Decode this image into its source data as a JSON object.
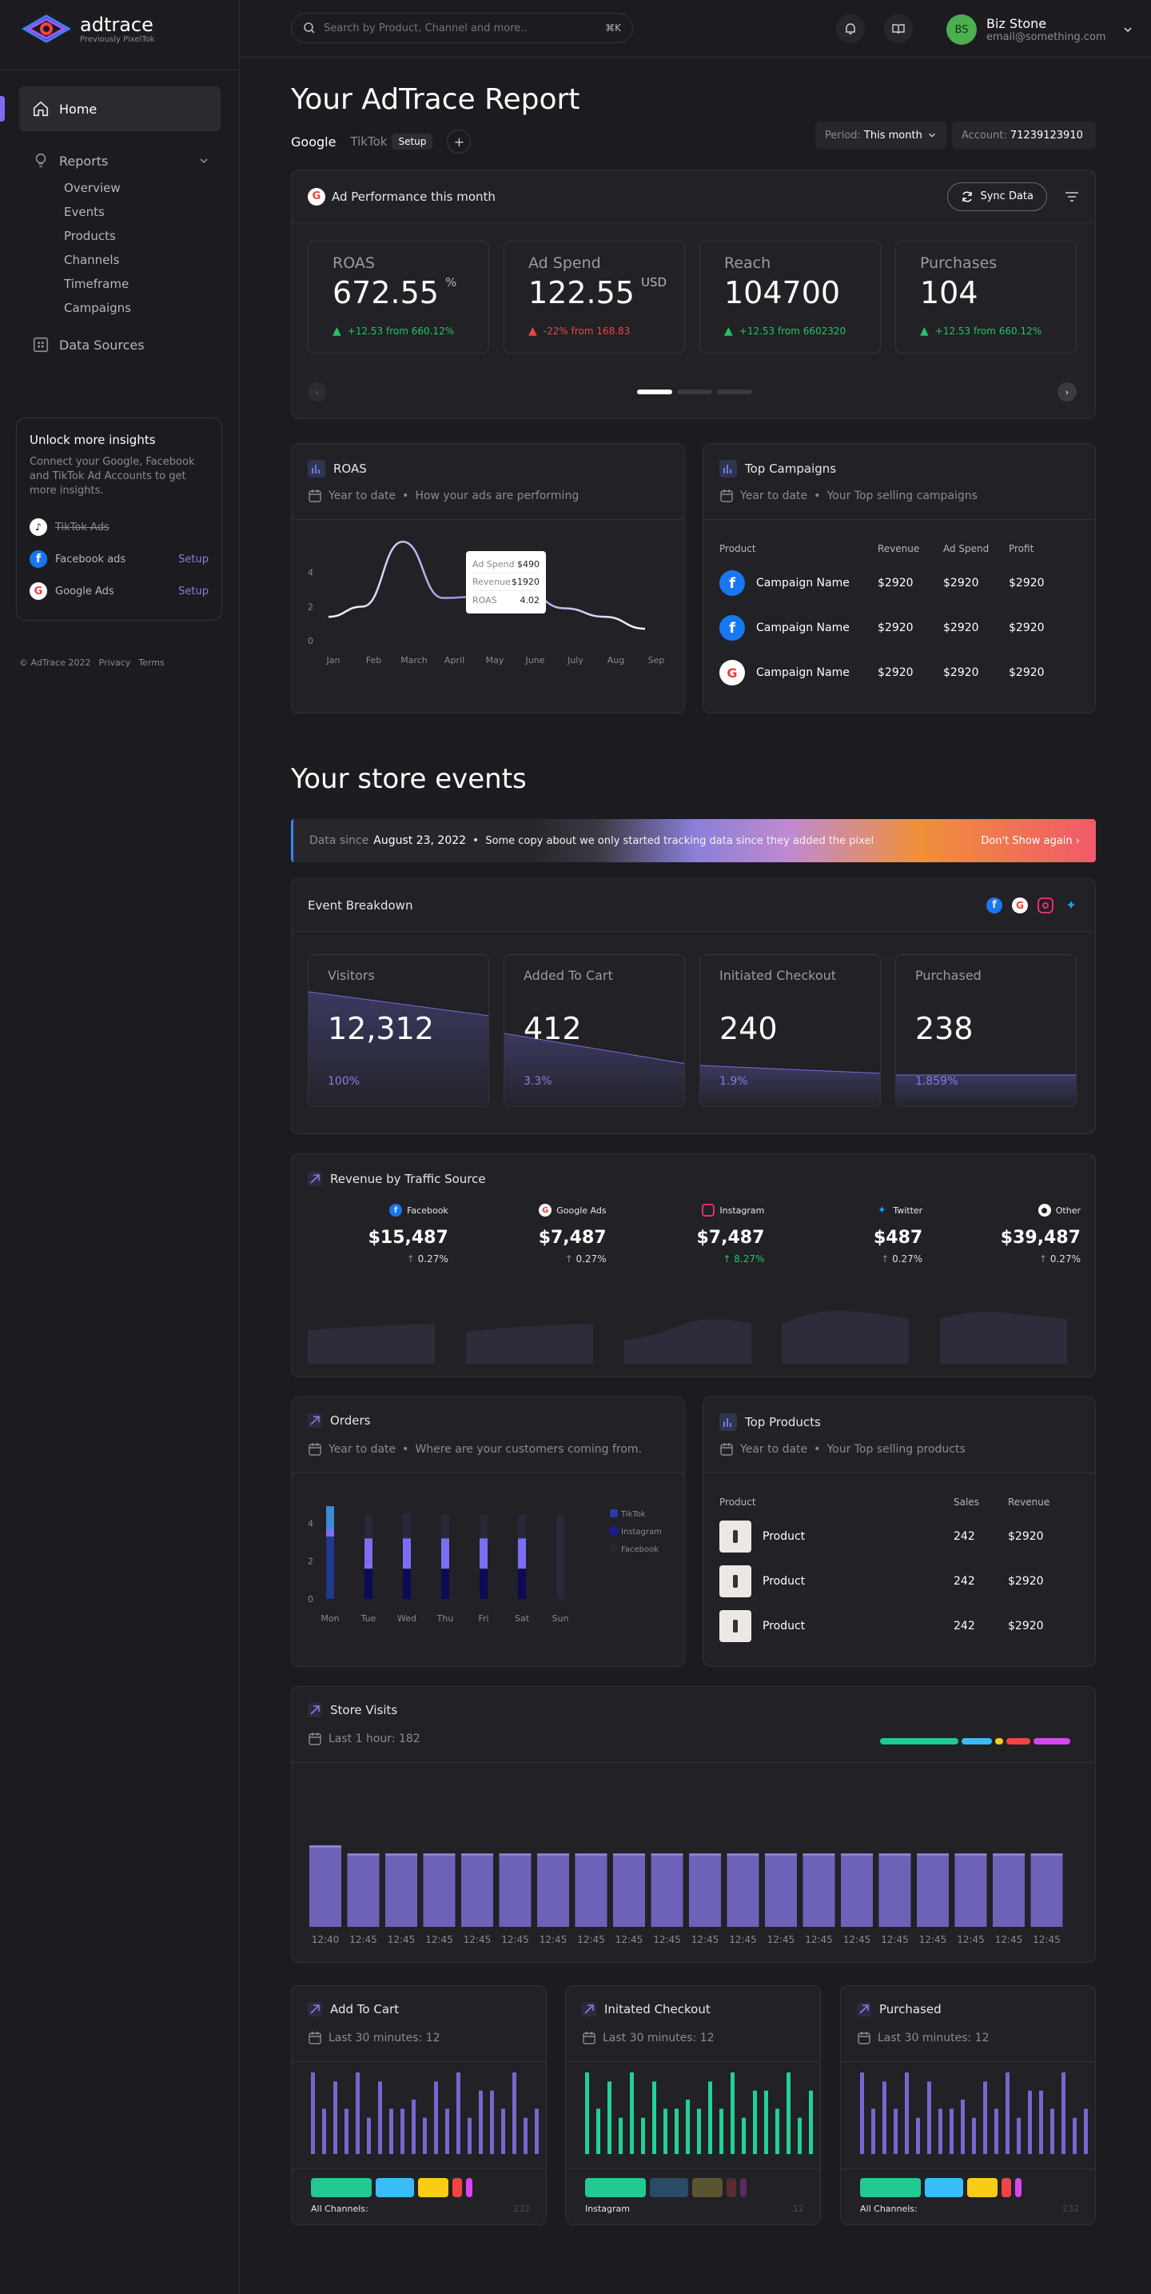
{
  "brand": {
    "name": "adtrace",
    "tagline": "Previously PixelTok"
  },
  "sidebar": {
    "home": "Home",
    "reports": "Reports",
    "report_items": [
      "Overview",
      "Events",
      "Products",
      "Channels",
      "Timeframe",
      "Campaigns"
    ],
    "data_sources": "Data Sources",
    "insights": {
      "title": "Unlock more insights",
      "desc": "Connect your Google, Facebook and TikTok Ad Accounts to get more insights.",
      "items": [
        {
          "label": "TikTok Ads",
          "action": ""
        },
        {
          "label": "Facebook ads",
          "action": "Setup"
        },
        {
          "label": "Google Ads",
          "action": "Setup"
        }
      ]
    },
    "footer": {
      "copy": "© AdTrace 2022",
      "privacy": "Privacy",
      "terms": "Terms"
    }
  },
  "topbar": {
    "search_placeholder": "Search by Product, Channel and more..",
    "shortcut": "⌘K",
    "user": {
      "initials": "BS",
      "name": "Biz Stone",
      "email": "email@something.com"
    }
  },
  "report": {
    "title": "Your AdTrace Report",
    "tabs": [
      {
        "label": "Google"
      },
      {
        "label": "TikTok",
        "badge": "Setup"
      }
    ],
    "add_tab": "+",
    "period_label": "Period:",
    "period_value": "This month",
    "account_label": "Account:",
    "account_value": "71239123910",
    "ad_card_title": "Ad Performance this month",
    "sync_label": "Sync Data",
    "metrics": [
      {
        "label": "ROAS",
        "value": "672.55",
        "unit": "%",
        "change": "+12.53 from 660.12%",
        "dir": "up"
      },
      {
        "label": "Ad Spend",
        "value": "122.55",
        "unit": "USD",
        "change": "-22% from 168.83",
        "dir": "down"
      },
      {
        "label": "Reach",
        "value": "104700",
        "unit": "",
        "change": "+12.53 from 6602320",
        "dir": "up"
      },
      {
        "label": "Purchases",
        "value": "104",
        "unit": "",
        "change": "+12.53 from 660.12%",
        "dir": "up"
      }
    ]
  },
  "roas_card": {
    "title": "ROAS",
    "subtitle_a": "Year to date",
    "subtitle_b": "How your ads are performing",
    "tooltip": {
      "spend_label": "Ad Spend",
      "spend": "$490",
      "revenue_label": "Revenue",
      "revenue": "$1920",
      "roas_label": "ROAS",
      "roas": "4.02"
    }
  },
  "campaigns": {
    "title": "Top Campaigns",
    "subtitle_a": "Year to date",
    "subtitle_b": "Your Top selling campaigns",
    "headers": [
      "Product",
      "Revenue",
      "Ad Spend",
      "Profit"
    ],
    "rows": [
      {
        "icon": "facebook",
        "name": "Campaign Name",
        "revenue": "$2920",
        "spend": "$2920",
        "profit": "$2920"
      },
      {
        "icon": "facebook",
        "name": "Campaign Name",
        "revenue": "$2920",
        "spend": "$2920",
        "profit": "$2920"
      },
      {
        "icon": "google",
        "name": "Campaign Name",
        "revenue": "$2920",
        "spend": "$2920",
        "profit": "$2920"
      }
    ]
  },
  "store": {
    "title": "Your store events",
    "banner_prefix": "Data since",
    "banner_date": "August 23, 2022",
    "banner_text": "Some copy about we only started tracking data since they added the pixel",
    "banner_action": "Don't Show again",
    "breakdown_title": "Event Breakdown",
    "events": [
      {
        "label": "Visitors",
        "value": "12,312",
        "pct": "100%"
      },
      {
        "label": "Added To Cart",
        "value": "412",
        "pct": "3.3%"
      },
      {
        "label": "Initiated Checkout",
        "value": "240",
        "pct": "1.9%"
      },
      {
        "label": "Purchased",
        "value": "238",
        "pct": "1.859%"
      }
    ],
    "traffic_title": "Revenue by Traffic Source",
    "traffic": [
      {
        "source": "Facebook",
        "value": "$15,487",
        "change": "0.27%",
        "dir": "neutral"
      },
      {
        "source": "Google Ads",
        "value": "$7,487",
        "change": "0.27%",
        "dir": "neutral"
      },
      {
        "source": "Instagram",
        "value": "$7,487",
        "change": "8.27%",
        "dir": "up"
      },
      {
        "source": "Twitter",
        "value": "$487",
        "change": "0.27%",
        "dir": "neutral"
      },
      {
        "source": "Other",
        "value": "$39,487",
        "change": "0.27%",
        "dir": "neutral"
      }
    ]
  },
  "orders": {
    "title": "Orders",
    "subtitle_a": "Year to date",
    "subtitle_b": "Where are your customers coming from."
  },
  "top_products": {
    "title": "Top Products",
    "subtitle_a": "Year to date",
    "subtitle_b": "Your Top selling products",
    "headers": [
      "Product",
      "Sales",
      "Revenue"
    ],
    "rows": [
      {
        "name": "Product",
        "sales": "242",
        "revenue": "$2920"
      },
      {
        "name": "Product",
        "sales": "242",
        "revenue": "$2920"
      },
      {
        "name": "Product",
        "sales": "242",
        "revenue": "$2920"
      }
    ]
  },
  "store_visits": {
    "title": "Store Visits",
    "subtitle": "Last 1 hour: 182"
  },
  "mini_cards": [
    {
      "title": "Add To Cart",
      "subtitle": "Last 30 minutes: 12",
      "footer_label": "All Channels:",
      "footer_value": "232",
      "color": "#7468cf"
    },
    {
      "title": "Initated Checkout",
      "subtitle": "Last 30 minutes: 12",
      "footer_label": "Instagram",
      "footer_value": "12",
      "color": "#21d196"
    },
    {
      "title": "Purchased",
      "subtitle": "Last 30 minutes: 12",
      "footer_label": "All Channels:",
      "footer_value": "232",
      "color": "#7468cf"
    }
  ],
  "chart_data": [
    {
      "type": "line",
      "title": "ROAS",
      "categories": [
        "Jan",
        "Feb",
        "March",
        "April",
        "May",
        "June",
        "July",
        "Aug",
        "Sep"
      ],
      "series": [
        {
          "values": [
            1.4,
            2.0,
            5.8,
            2.5,
            2.6,
            2.9,
            1.9,
            1.4,
            0.7
          ]
        }
      ],
      "yticks": [
        0,
        2,
        4
      ],
      "ylim": [
        0,
        6
      ]
    },
    {
      "type": "bar",
      "title": "Orders",
      "categories": [
        "Mon",
        "Tue",
        "Wed",
        "Thu",
        "Fri",
        "Sat",
        "Sun"
      ],
      "series": [
        {
          "name": "TikTok",
          "values": [
            0,
            0,
            0,
            0,
            0,
            0,
            0
          ]
        },
        {
          "name": "Instagram",
          "values": [
            1.6,
            1.6,
            1.6,
            1.6,
            1.6,
            1.6,
            0
          ]
        },
        {
          "name": "Facebook",
          "values": [
            3.3,
            1.6,
            1.6,
            1.6,
            1.6,
            1.6,
            0
          ]
        }
      ],
      "yticks": [
        0,
        2,
        4
      ],
      "legend": "right"
    },
    {
      "type": "bar",
      "title": "Store Visits",
      "categories": [
        "12:40",
        "12:45",
        "12:45",
        "12:45",
        "12:45",
        "12:45",
        "12:45",
        "12:45",
        "12:45",
        "12:45",
        "12:45",
        "12:45",
        "12:45",
        "12:45",
        "12:45",
        "12:45",
        "12:45",
        "12:45",
        "12:45",
        "12:45"
      ],
      "values": [
        10,
        9,
        9,
        9,
        9,
        9,
        9,
        9,
        9,
        9,
        9,
        9,
        9,
        9,
        9,
        9,
        9,
        9,
        9,
        9
      ]
    },
    {
      "type": "bar",
      "title": "Add To Cart",
      "values": [
        9,
        5,
        8,
        5,
        9,
        4,
        8,
        5,
        5,
        6,
        4,
        8,
        5,
        9,
        4,
        7,
        7,
        5,
        9,
        4,
        5,
        4
      ]
    },
    {
      "type": "bar",
      "title": "Initated Checkout",
      "values": [
        9,
        5,
        8,
        4,
        9,
        4,
        8,
        5,
        5,
        6,
        5,
        8,
        5,
        9,
        4,
        7,
        7,
        5,
        9,
        4,
        7,
        5
      ]
    },
    {
      "type": "bar",
      "title": "Purchased",
      "values": [
        9,
        5,
        8,
        5,
        9,
        4,
        8,
        5,
        5,
        6,
        4,
        8,
        5,
        9,
        4,
        7,
        7,
        5,
        9,
        4,
        5,
        4
      ]
    }
  ]
}
